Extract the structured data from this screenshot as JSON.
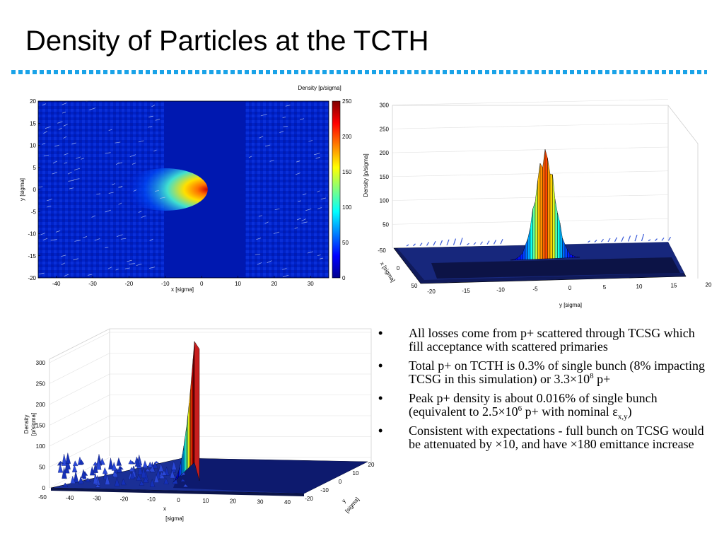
{
  "title": "Density of Particles at the TCTH",
  "colors": {
    "rule": "#1aa3e8",
    "accent_red": "#c00000"
  },
  "bullets": [
    {
      "text": "All losses come from p+ scattered through TCSG which fill acceptance with scattered primaries"
    },
    {
      "pre": "Total p+ on TCTH is 0.3% of single bunch (8% impacting TCSG in this simulation) or 3.3×10",
      "sup": "8",
      "post": " p+"
    },
    {
      "pre": "Peak p+ density is about 0.016% of single bunch (equivalent to 2.5×10",
      "sup": "6",
      "mid": " p+ with nominal ε",
      "sub": "x,y",
      "post": ")"
    },
    {
      "text": "Consistent with expectations - full bunch on TCSG would be attenuated by ×10, and have ×180 emittance increase"
    }
  ],
  "chart_data": [
    {
      "type": "heatmap",
      "colorbar_label": "Density [p/sigma]",
      "xlabel": "x [sigma]",
      "ylabel": "y [sigma]",
      "xlim": [
        -45,
        35
      ],
      "ylim": [
        -20,
        20
      ],
      "xticks": [
        -40,
        -30,
        -20,
        -10,
        0,
        10,
        20,
        30
      ],
      "yticks": [
        20,
        15,
        10,
        5,
        0,
        -5,
        -10,
        -15,
        -20
      ],
      "colorbar_ticks": [
        250,
        200,
        150,
        100,
        50,
        0
      ],
      "zlim": [
        0,
        250
      ],
      "peak": {
        "x": -10,
        "y": 0,
        "value": 240
      }
    },
    {
      "type": "surface",
      "zlabel": "Density [p/sigma]",
      "xlabel": "x [sigma]",
      "ylabel": "y [sigma]",
      "zticks": [
        300,
        250,
        200,
        150,
        100,
        50
      ],
      "xticks": [
        -50,
        0,
        50
      ],
      "yticks": [
        -20,
        -15,
        -10,
        -5,
        0,
        5,
        10,
        15,
        20
      ],
      "peak_value": 220
    },
    {
      "type": "surface",
      "zlabel_line1": "Density",
      "zlabel_line2": "[p/sigma]",
      "xlabel_line1": "x",
      "xlabel_line2": "[sigma]",
      "ylabel_line1": "y",
      "ylabel_line2": "[sigma]",
      "zticks": [
        300,
        250,
        200,
        150,
        100,
        50,
        0
      ],
      "xticks": [
        -50,
        -40,
        -30,
        -20,
        -10,
        0,
        10,
        20,
        30,
        40
      ],
      "yticks": [
        20,
        10,
        0,
        -10,
        -20
      ],
      "peak_value": 290
    }
  ]
}
